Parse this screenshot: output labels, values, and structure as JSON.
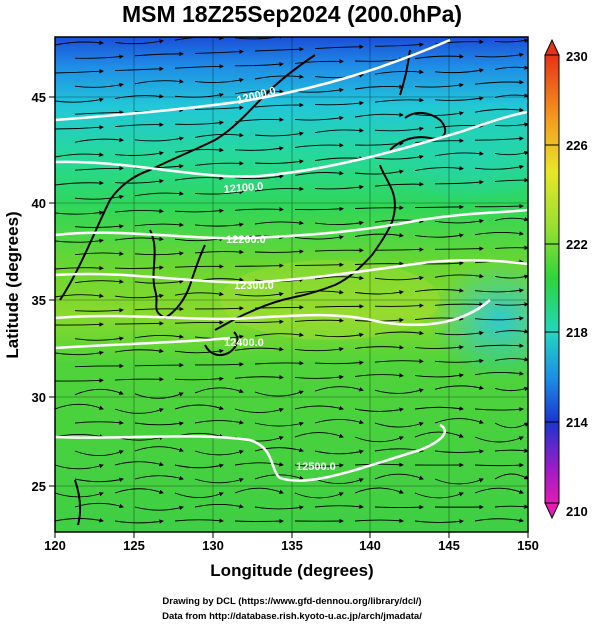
{
  "title": "MSM 18Z25Sep2024 (200.0hPa)",
  "xlabel": "Longitude (degrees)",
  "ylabel": "Latitude  (degrees)",
  "x_ticks": [
    "120",
    "125",
    "130",
    "135",
    "140",
    "145",
    "150"
  ],
  "y_ticks": [
    "25",
    "30",
    "35",
    "40",
    "45"
  ],
  "colorbar": {
    "labels": [
      "230",
      "226",
      "222",
      "218",
      "214",
      "210"
    ]
  },
  "contours": [
    {
      "label": "12000.0"
    },
    {
      "label": "12100.0"
    },
    {
      "label": "12200.0"
    },
    {
      "label": "12300.0"
    },
    {
      "label": "12400.0"
    },
    {
      "label": "12500.0"
    }
  ],
  "credits": {
    "line1": "Drawing by DCL (https://www.gfd-dennou.org/library/dcl/)",
    "line2": "Data from http://database.rish.kyoto-u.ac.jp/arch/jmadata/"
  }
}
